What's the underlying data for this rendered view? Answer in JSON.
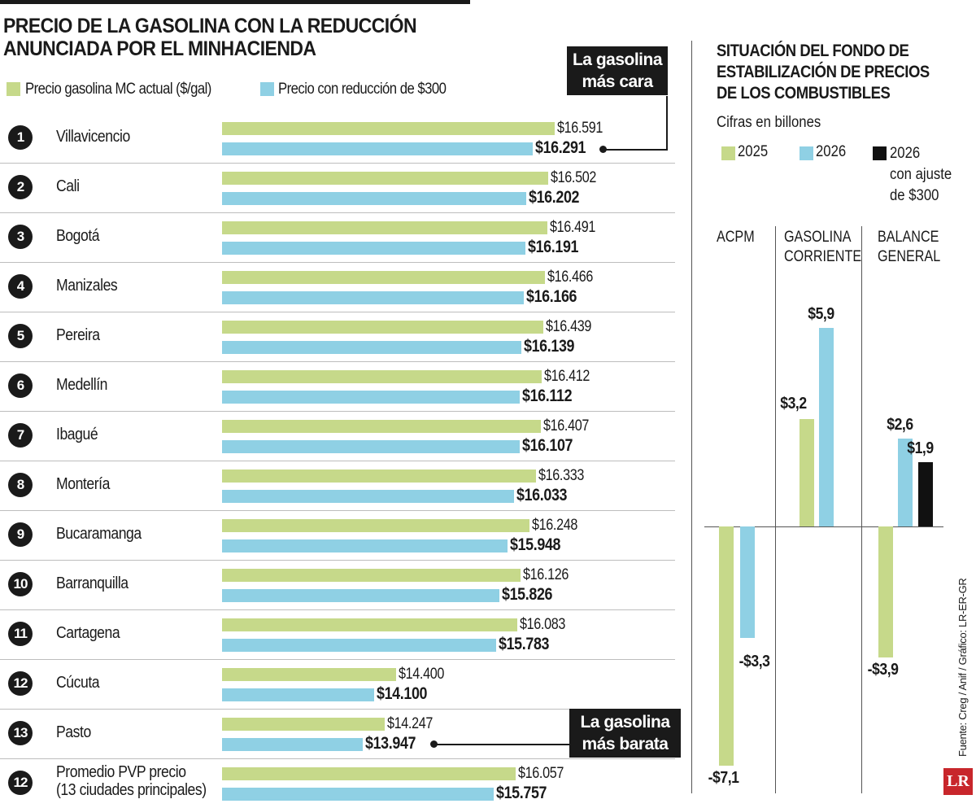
{
  "colors": {
    "green": "#c6d98a",
    "blue": "#8fd0e4",
    "black": "#111111"
  },
  "chart_data": [
    {
      "type": "bar",
      "orientation": "horizontal",
      "title": "PRECIO DE LA GASOLINA CON LA REDUCCIÓN ANUNCIADA POR EL MINHACIENDA",
      "ranks": [
        "1",
        "2",
        "3",
        "4",
        "5",
        "6",
        "7",
        "8",
        "9",
        "10",
        "11",
        "12",
        "13",
        "12"
      ],
      "categories": [
        "Villavicencio",
        "Cali",
        "Bogotá",
        "Manizales",
        "Pereira",
        "Medellín",
        "Ibagué",
        "Montería",
        "Bucaramanga",
        "Barranquilla",
        "Cartagena",
        "Cúcuta",
        "Pasto",
        "Promedio PVP precio\n(13 ciudades principales)"
      ],
      "series": [
        {
          "name": "Precio gasolina MC actual ($/gal)",
          "values": [
            16591,
            16502,
            16491,
            16466,
            16439,
            16412,
            16407,
            16333,
            16248,
            16126,
            16083,
            14400,
            14247,
            16057
          ],
          "labels": [
            "$16.591",
            "$16.502",
            "$16.491",
            "$16.466",
            "$16.439",
            "$16.412",
            "$16.407",
            "$16.333",
            "$16.248",
            "$16.126",
            "$16.083",
            "$14.400",
            "$14.247",
            "$16.057"
          ]
        },
        {
          "name": "Precio con reducción de $300",
          "values": [
            16291,
            16202,
            16191,
            16166,
            16139,
            16112,
            16107,
            16033,
            15948,
            15826,
            15783,
            14100,
            13947,
            15757
          ],
          "labels": [
            "$16.291",
            "$16.202",
            "$16.191",
            "$16.166",
            "$16.139",
            "$16.112",
            "$16.107",
            "$16.033",
            "$15.948",
            "$15.826",
            "$15.783",
            "$14.100",
            "$13.947",
            "$15.757"
          ]
        }
      ],
      "xlim": [
        12000,
        17000
      ],
      "annotations": {
        "max": "La gasolina\nmás cara",
        "min": "La gasolina\nmás barata"
      }
    },
    {
      "type": "bar",
      "title": "SITUACIÓN DEL FONDO DE\nESTABILIZACIÓN DE PRECIOS\nDE LOS COMBUSTIBLES",
      "subtitle": "Cifras en billones",
      "categories": [
        "ACPM",
        "GASOLINA\nCORRIENTE",
        "BALANCE\nGENERAL"
      ],
      "series": [
        {
          "name": "2025",
          "values": [
            -7.1,
            3.2,
            -3.9
          ],
          "labels": [
            "-$7,1",
            "$3,2",
            "-$3,9"
          ]
        },
        {
          "name": "2026",
          "values": [
            -3.3,
            5.9,
            2.6
          ],
          "labels": [
            "-$3,3",
            "$5,9",
            "$2,6"
          ]
        },
        {
          "name": "2026\ncon ajuste\nde $300",
          "values": [
            null,
            null,
            1.9
          ],
          "labels": [
            null,
            null,
            "$1,9"
          ]
        }
      ]
    }
  ],
  "source": "Fuente: Creg / Anif / Gráfico: LR-ER-GR",
  "logo": "LR"
}
